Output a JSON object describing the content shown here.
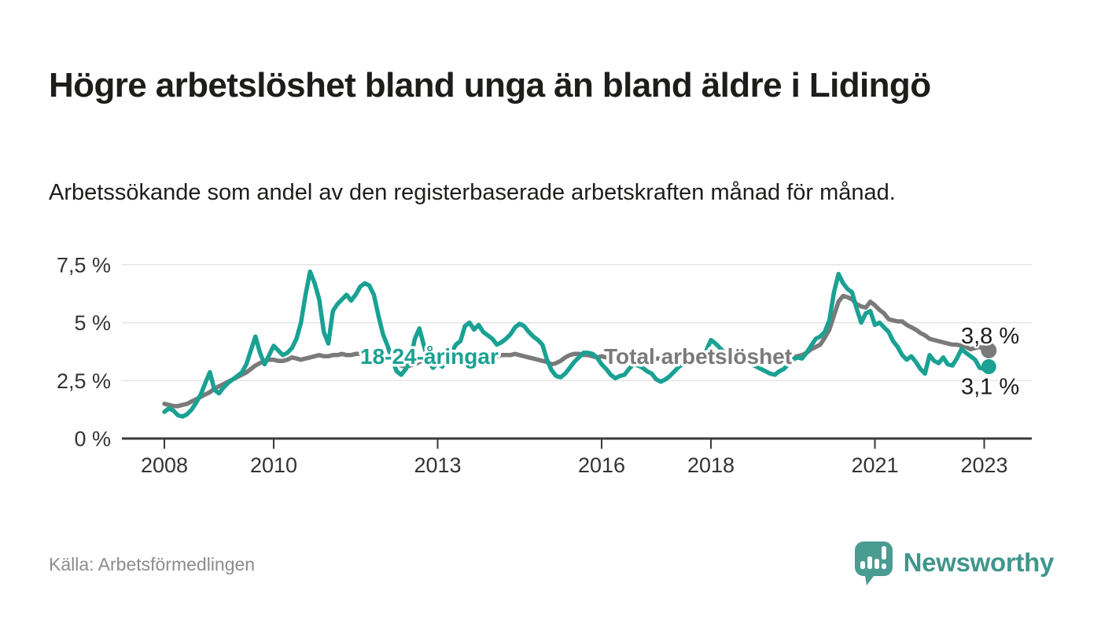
{
  "page": {
    "title": "Högre arbetslöshet bland unga än bland äldre i Lidingö",
    "subtitle": "Arbetssökande som andel av den registerbaserade arbetskraften månad för månad.",
    "source": "Källa: Arbetsförmedlingen",
    "brand_name": "Newsworthy"
  },
  "colors": {
    "young_line": "#1AA193",
    "total_line": "#7A7A7A",
    "axis": "#3A3A3A",
    "grid": "#E4E4E4",
    "tick_text": "#333333",
    "value_text": "#1D1D1B",
    "source_text": "#8C8C8C",
    "brand_teal": "#40968B",
    "brand_bubble": "#4A9C91",
    "background": "#FFFFFF"
  },
  "chart_data": {
    "type": "line",
    "title": "Högre arbetslöshet bland unga än bland äldre i Lidingö",
    "subtitle": "Arbetssökande som andel av den registerbaserade arbetskraften månad för månad.",
    "xlabel": "",
    "ylabel": "",
    "unit": "%",
    "grid": "horizontal",
    "legend_position": "inline-labels",
    "x_start": 2008.0,
    "x_step": 0.0833333,
    "xlim": [
      2007.2,
      2023.9
    ],
    "ylim": [
      0,
      8.25
    ],
    "x_ticks": [
      {
        "t": 2008,
        "label": "2008"
      },
      {
        "t": 2010,
        "label": "2010"
      },
      {
        "t": 2013,
        "label": "2013"
      },
      {
        "t": 2016,
        "label": "2016"
      },
      {
        "t": 2018,
        "label": "2018"
      },
      {
        "t": 2021,
        "label": "2021"
      },
      {
        "t": 2023,
        "label": "2023"
      }
    ],
    "y_ticks": [
      {
        "v": 0,
        "label": "0 %"
      },
      {
        "v": 2.5,
        "label": "2,5 %"
      },
      {
        "v": 5,
        "label": "5 %"
      },
      {
        "v": 7.5,
        "label": "7,5 %"
      }
    ],
    "series": [
      {
        "name": "18-24-åringar",
        "role": "young",
        "color": "#1AA193",
        "end_value": 3.1,
        "end_label": "3,1 %",
        "values": [
          1.15,
          1.3,
          1.2,
          1.0,
          0.95,
          1.05,
          1.25,
          1.55,
          1.9,
          2.4,
          2.86,
          2.1,
          1.95,
          2.2,
          2.4,
          2.55,
          2.7,
          2.85,
          3.2,
          3.8,
          4.4,
          3.7,
          3.2,
          3.6,
          4.0,
          3.8,
          3.6,
          3.7,
          3.9,
          4.3,
          5.0,
          6.2,
          7.2,
          6.7,
          6.0,
          4.6,
          4.1,
          5.5,
          5.8,
          6.0,
          6.2,
          5.95,
          6.2,
          6.55,
          6.7,
          6.6,
          6.2,
          5.3,
          4.5,
          4.0,
          3.4,
          2.9,
          2.75,
          3.0,
          3.35,
          4.3,
          4.75,
          4.0,
          3.3,
          3.05,
          3.25,
          3.1,
          3.45,
          3.7,
          4.05,
          4.2,
          4.85,
          5.0,
          4.7,
          4.9,
          4.6,
          4.45,
          4.3,
          4.05,
          4.15,
          4.3,
          4.5,
          4.8,
          4.95,
          4.85,
          4.6,
          4.4,
          4.25,
          4.05,
          3.4,
          2.95,
          2.7,
          2.64,
          2.8,
          3.05,
          3.3,
          3.5,
          3.7,
          3.7,
          3.65,
          3.5,
          3.2,
          3.0,
          2.75,
          2.6,
          2.7,
          2.75,
          3.0,
          3.2,
          3.15,
          3.05,
          2.9,
          2.8,
          2.55,
          2.45,
          2.55,
          2.7,
          2.9,
          3.1,
          3.25,
          3.3,
          3.3,
          3.35,
          3.45,
          3.8,
          4.25,
          4.1,
          3.9,
          3.7,
          3.5,
          3.4,
          3.5,
          3.6,
          3.4,
          3.2,
          3.1,
          3.0,
          2.9,
          2.8,
          2.75,
          2.9,
          3.0,
          3.2,
          3.4,
          3.5,
          3.45,
          3.7,
          4.0,
          4.3,
          4.4,
          4.6,
          5.1,
          6.3,
          7.1,
          6.7,
          6.45,
          6.3,
          5.6,
          5.0,
          5.4,
          5.5,
          4.9,
          5.0,
          4.8,
          4.6,
          4.2,
          3.95,
          3.6,
          3.4,
          3.55,
          3.3,
          3.0,
          2.8,
          3.6,
          3.35,
          3.25,
          3.5,
          3.2,
          3.15,
          3.45,
          3.85,
          3.7,
          3.55,
          3.4,
          3.05,
          3.0,
          3.1
        ]
      },
      {
        "name": "Total arbetslöshet",
        "role": "total",
        "color": "#7A7A7A",
        "end_value": 3.8,
        "end_label": "3,8 %",
        "values": [
          1.5,
          1.45,
          1.4,
          1.4,
          1.45,
          1.5,
          1.6,
          1.7,
          1.8,
          1.9,
          2.0,
          2.15,
          2.25,
          2.35,
          2.45,
          2.55,
          2.65,
          2.75,
          2.85,
          3.0,
          3.15,
          3.25,
          3.35,
          3.4,
          3.4,
          3.35,
          3.35,
          3.4,
          3.5,
          3.45,
          3.4,
          3.45,
          3.5,
          3.55,
          3.6,
          3.55,
          3.55,
          3.6,
          3.6,
          3.65,
          3.6,
          3.6,
          3.65,
          3.65,
          3.6,
          3.6,
          3.55,
          3.55,
          3.55,
          3.45,
          3.35,
          3.25,
          3.15,
          3.1,
          3.15,
          3.2,
          3.3,
          3.4,
          3.45,
          3.5,
          3.5,
          3.5,
          3.55,
          3.55,
          3.6,
          3.6,
          3.6,
          3.6,
          3.55,
          3.55,
          3.5,
          3.5,
          3.55,
          3.55,
          3.6,
          3.6,
          3.6,
          3.65,
          3.6,
          3.55,
          3.5,
          3.45,
          3.4,
          3.35,
          3.3,
          3.2,
          3.25,
          3.35,
          3.5,
          3.6,
          3.65,
          3.65,
          3.6,
          3.6,
          3.55,
          3.5,
          3.55,
          3.5,
          3.5,
          3.45,
          3.45,
          3.4,
          3.45,
          3.45,
          3.4,
          3.4,
          3.4,
          3.4,
          3.45,
          3.45,
          3.4,
          3.4,
          3.4,
          3.4,
          3.45,
          3.45,
          3.5,
          3.5,
          3.5,
          3.5,
          3.55,
          3.55,
          3.5,
          3.5,
          3.45,
          3.45,
          3.4,
          3.4,
          3.4,
          3.35,
          3.35,
          3.35,
          3.35,
          3.4,
          3.4,
          3.45,
          3.45,
          3.5,
          3.5,
          3.55,
          3.6,
          3.7,
          3.85,
          3.95,
          4.05,
          4.35,
          4.7,
          5.3,
          5.9,
          6.15,
          6.1,
          6.0,
          5.8,
          5.7,
          5.65,
          5.9,
          5.75,
          5.55,
          5.4,
          5.15,
          5.1,
          5.05,
          5.05,
          4.9,
          4.8,
          4.7,
          4.55,
          4.45,
          4.3,
          4.25,
          4.2,
          4.15,
          4.1,
          4.05,
          4.05,
          4.0,
          3.95,
          3.85,
          3.9,
          3.95,
          3.85,
          3.8
        ]
      }
    ]
  }
}
